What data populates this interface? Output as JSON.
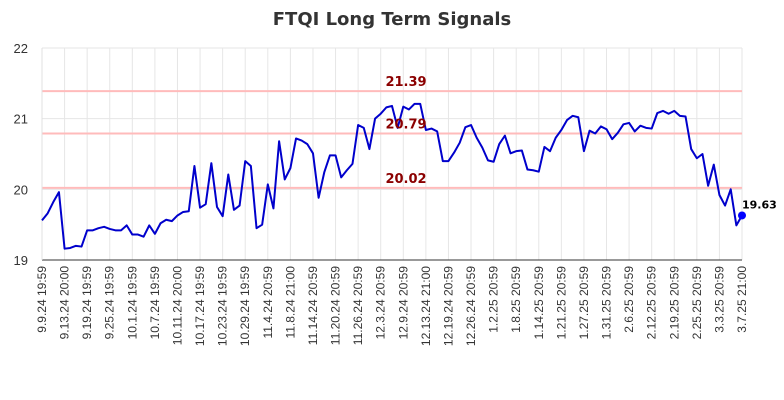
{
  "chart_data": {
    "type": "line",
    "title": "FTQI Long Term Signals",
    "xlabel": "",
    "ylabel": "",
    "ylim": [
      19,
      22
    ],
    "yticks": [
      "19",
      "20",
      "21",
      "22"
    ],
    "xtick_labels": [
      "9.9.24 19:59",
      "9.13.24 20:00",
      "9.19.24 19:59",
      "9.25.24 19:59",
      "10.1.24 19:59",
      "10.7.24 19:59",
      "10.11.24 20:00",
      "10.17.24 19:59",
      "10.23.24 19:59",
      "10.29.24 19:59",
      "11.4.24 20:59",
      "11.8.24 21:00",
      "11.14.24 20:59",
      "11.20.24 20:59",
      "11.26.24 20:59",
      "12.3.24 20:59",
      "12.9.24 20:59",
      "12.13.24 21:00",
      "12.19.24 20:59",
      "12.26.24 20:59",
      "1.2.25 20:59",
      "1.8.25 20:59",
      "1.14.25 20:59",
      "1.21.25 20:59",
      "1.27.25 20:59",
      "1.31.25 20:59",
      "2.6.25 20:59",
      "2.12.25 20:59",
      "2.19.25 20:59",
      "2.25.25 20:59",
      "3.3.25 20:59",
      "3.7.25 21:00"
    ],
    "reference_lines": [
      {
        "label": "21.39",
        "value": 21.39
      },
      {
        "label": "20.79",
        "value": 20.79
      },
      {
        "label": "20.02",
        "value": 20.02
      }
    ],
    "last_label": "19.63",
    "grid": true,
    "colors": {
      "line": "#0000cc",
      "marker": "#0000ff",
      "reference": "#ffbbbb",
      "reference_text": "#8b0000",
      "grid": "#e6e6e6"
    },
    "series": [
      {
        "values": [
          19.56,
          19.66,
          19.82,
          19.96,
          19.16,
          19.17,
          19.2,
          19.19,
          19.42,
          19.42,
          19.45,
          19.47,
          19.44,
          19.42,
          19.42,
          19.49,
          19.36,
          19.36,
          19.33,
          19.49,
          19.37,
          19.52,
          19.57,
          19.55,
          19.63,
          19.68,
          19.69,
          20.33,
          19.74,
          19.79,
          20.37,
          19.75,
          19.62,
          20.21,
          19.71,
          19.77,
          20.4,
          20.33,
          19.45,
          19.5,
          20.07,
          19.73,
          20.68,
          20.14,
          20.3,
          20.72,
          20.69,
          20.64,
          20.51,
          19.88,
          20.24,
          20.48,
          20.48,
          20.17,
          20.27,
          20.36,
          20.91,
          20.87,
          20.57,
          21.0,
          21.07,
          21.16,
          21.18,
          20.87,
          21.17,
          21.13,
          21.21,
          21.21,
          20.84,
          20.86,
          20.82,
          20.4,
          20.4,
          20.52,
          20.66,
          20.88,
          20.91,
          20.73,
          20.59,
          20.41,
          20.39,
          20.64,
          20.76,
          20.51,
          20.54,
          20.55,
          20.28,
          20.27,
          20.25,
          20.6,
          20.54,
          20.73,
          20.84,
          20.98,
          21.04,
          21.02,
          20.54,
          20.83,
          20.79,
          20.89,
          20.85,
          20.71,
          20.8,
          20.92,
          20.94,
          20.82,
          20.9,
          20.87,
          20.86,
          21.08,
          21.11,
          21.07,
          21.11,
          21.04,
          21.03,
          20.57,
          20.44,
          20.5,
          20.05,
          20.35,
          19.92,
          19.77,
          20.0,
          19.49,
          19.63
        ]
      }
    ]
  }
}
